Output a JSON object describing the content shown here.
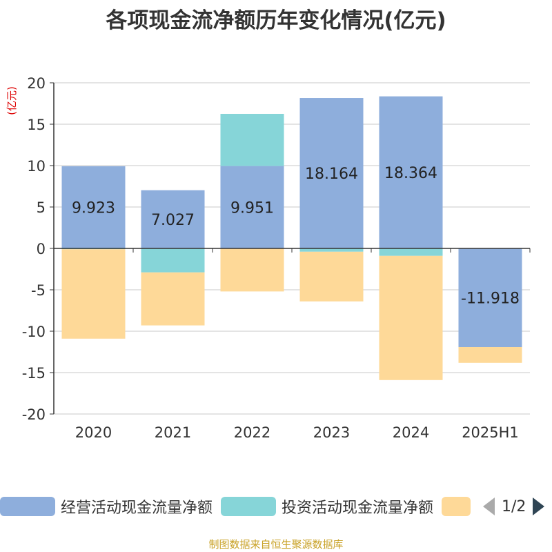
{
  "title": "各项现金流净额历年变化情况(亿元)",
  "source": "制图数据来自恒生聚源数据库",
  "pager": "1/2",
  "colors": {
    "operating": "#8eaedc",
    "investing": "#86d5d8",
    "financing": "#fed998",
    "axis": "#333333",
    "grid": "#c8c8c8",
    "unit": "#dd0000"
  },
  "chart_data": {
    "type": "bar",
    "stacked": true,
    "title": "各项现金流净额历年变化情况(亿元)",
    "ylabel": "(亿元)",
    "ylim": [
      -20,
      20
    ],
    "yticks": [
      20,
      15,
      10,
      5,
      0,
      -5,
      -10,
      -15,
      -20
    ],
    "grid": true,
    "legend_position": "bottom",
    "categories": [
      "2020",
      "2021",
      "2022",
      "2023",
      "2024",
      "2025H1"
    ],
    "series": [
      {
        "name": "经营活动现金流量净额",
        "color": "#8eaedc",
        "values": [
          9.923,
          7.027,
          9.951,
          18.164,
          18.364,
          -11.918
        ],
        "labels": [
          "9.923",
          "7.027",
          "9.951",
          "18.164",
          "18.364",
          "-11.918"
        ]
      },
      {
        "name": "投资活动现金流量净额",
        "color": "#86d5d8",
        "values": [
          -0.1,
          -2.9,
          6.3,
          -0.4,
          -0.9,
          0
        ]
      },
      {
        "name": "",
        "color": "#fed998",
        "values": [
          -10.8,
          -6.4,
          -5.2,
          -6.0,
          -15.0,
          -1.9
        ]
      }
    ]
  }
}
